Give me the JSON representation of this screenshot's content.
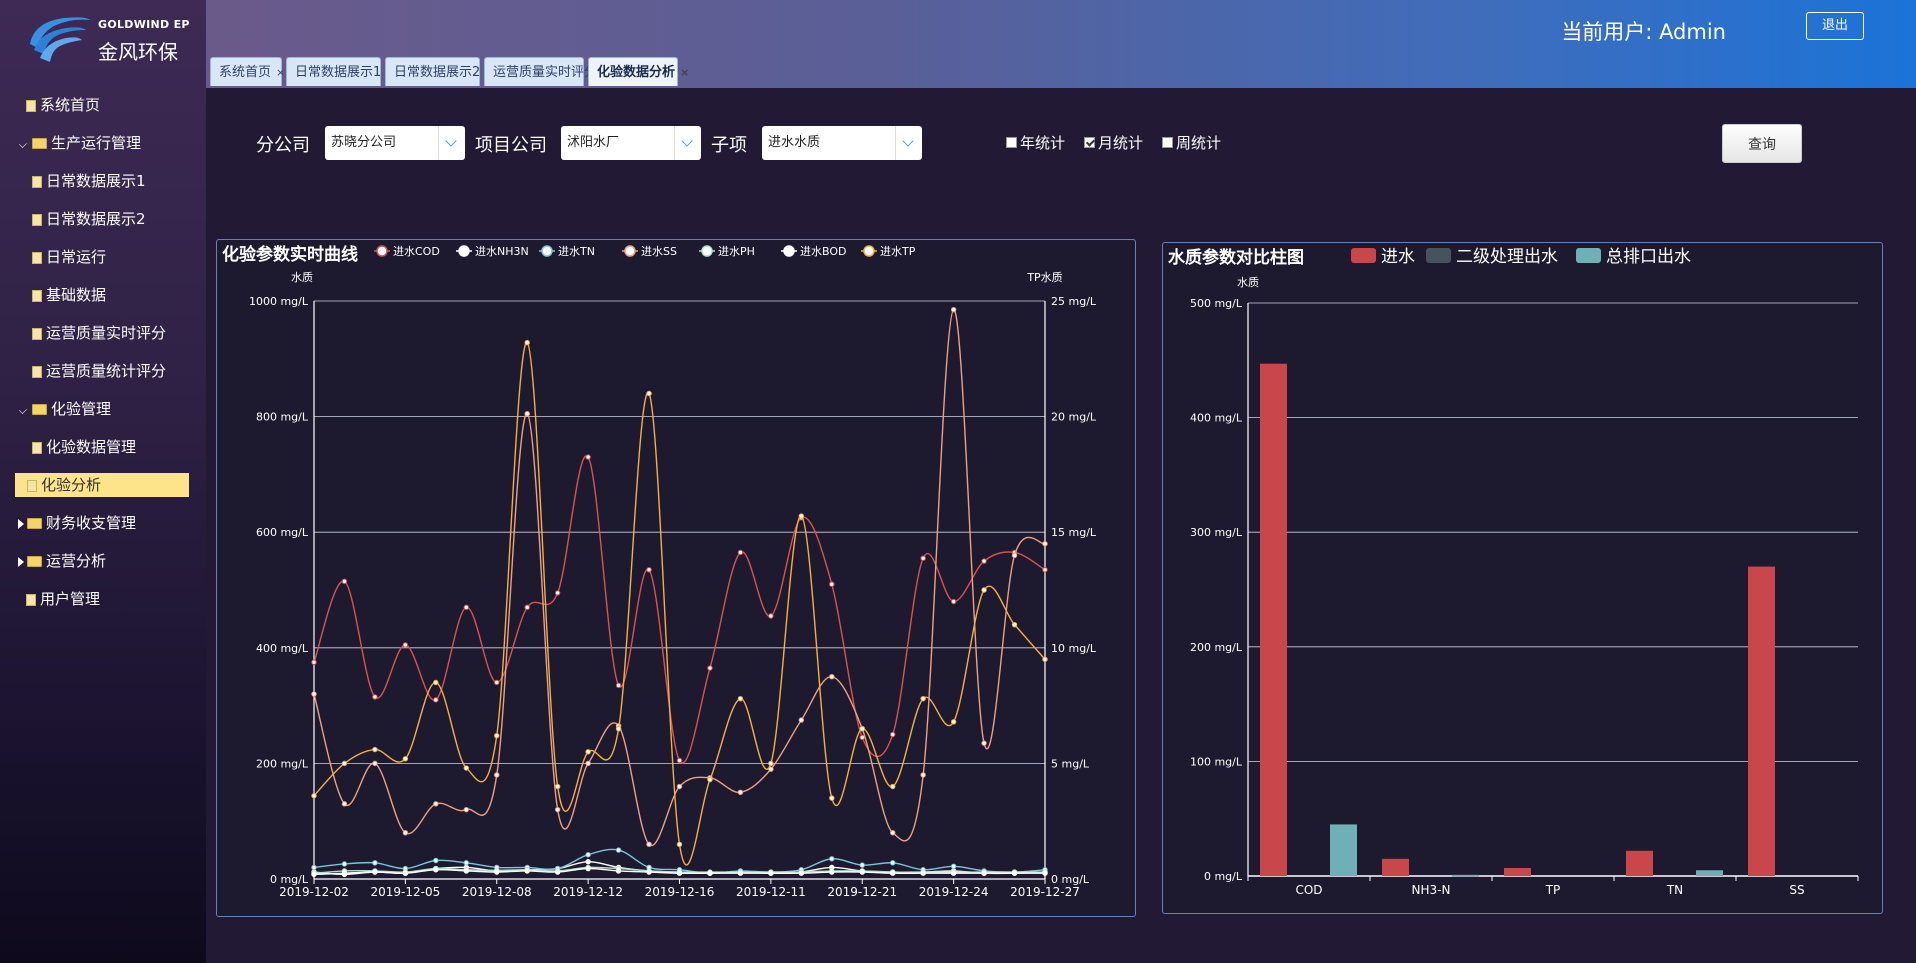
{
  "brand": {
    "en": "GOLDWIND EP",
    "cn": "金风环保"
  },
  "header": {
    "user_label": "当前用户: Admin",
    "logout": "退出"
  },
  "tabs": [
    "系统首页",
    "日常数据展示1",
    "日常数据展示2",
    "运营质量实时评分",
    "化验数据分析"
  ],
  "active_tab": 4,
  "menu": [
    {
      "label": "系统首页",
      "type": "doc",
      "level": 0
    },
    {
      "label": "生产运行管理",
      "type": "folder",
      "level": 0,
      "expanded": true
    },
    {
      "label": "日常数据展示1",
      "type": "doc",
      "level": 1
    },
    {
      "label": "日常数据展示2",
      "type": "doc",
      "level": 1
    },
    {
      "label": "日常运行",
      "type": "doc",
      "level": 1
    },
    {
      "label": "基础数据",
      "type": "doc",
      "level": 1
    },
    {
      "label": "运营质量实时评分",
      "type": "doc",
      "level": 1
    },
    {
      "label": "运营质量统计评分",
      "type": "doc",
      "level": 1
    },
    {
      "label": "化验管理",
      "type": "folder",
      "level": 0,
      "expanded": true
    },
    {
      "label": "化验数据管理",
      "type": "doc",
      "level": 1
    },
    {
      "label": "化验分析",
      "type": "doc",
      "level": 1,
      "active": true
    },
    {
      "label": "财务收支管理",
      "type": "folder",
      "level": 0,
      "expanded": false
    },
    {
      "label": "运营分析",
      "type": "folder",
      "level": 0,
      "expanded": false
    },
    {
      "label": "用户管理",
      "type": "doc",
      "level": 0
    }
  ],
  "filters": {
    "branch_label": "分公司",
    "branch_value": "苏晓分公司",
    "project_label": "项目公司",
    "project_value": "沭阳水厂",
    "item_label": "子项",
    "item_value": "进水水质",
    "year_label": "年统计",
    "year_checked": false,
    "month_label": "月统计",
    "month_checked": true,
    "week_label": "周统计",
    "week_checked": false,
    "query": "查询"
  },
  "line_chart": {
    "title": "化验参数实时曲线",
    "left_axis_name": "水质",
    "right_axis_name": "TP水质",
    "left_ticks": [
      "0 mg/L",
      "200 mg/L",
      "400 mg/L",
      "600 mg/L",
      "800 mg/L",
      "1000 mg/L"
    ],
    "right_ticks": [
      "0 mg/L",
      "5 mg/L",
      "10 mg/L",
      "15 mg/L",
      "20 mg/L",
      "25 mg/L"
    ],
    "x_labels": [
      "2019-12-02",
      "2019-12-05",
      "2019-12-08",
      "2019-12-12",
      "2019-12-16",
      "2019-12-11",
      "2019-12-21",
      "2019-12-24",
      "2019-12-27"
    ]
  },
  "bar_chart": {
    "title": "水质参数对比柱图",
    "axis_name": "水质",
    "ticks": [
      "0 mg/L",
      "100 mg/L",
      "200 mg/L",
      "300 mg/L",
      "400 mg/L",
      "500 mg/L"
    ]
  },
  "chart_data": [
    {
      "type": "line",
      "title": "化验参数实时曲线",
      "ylabel": "水质",
      "y2label": "TP水质",
      "ylim": [
        0,
        1000
      ],
      "y2lim": [
        0,
        25
      ],
      "x_points": 25,
      "series": [
        {
          "name": "进水COD",
          "color": "#d9534f",
          "axis": "left",
          "values": [
            375,
            515,
            315,
            405,
            310,
            470,
            340,
            470,
            495,
            730,
            335,
            535,
            205,
            365,
            565,
            455,
            625,
            510,
            245,
            250,
            555,
            480,
            550,
            565,
            535
          ]
        },
        {
          "name": "进水NH3N",
          "color": "#ffffff",
          "axis": "left",
          "values": [
            12,
            8,
            12,
            10,
            18,
            20,
            14,
            16,
            18,
            30,
            20,
            14,
            12,
            10,
            12,
            10,
            12,
            20,
            14,
            12,
            12,
            14,
            10,
            10,
            12
          ]
        },
        {
          "name": "进水TN",
          "color": "#7ec4d8",
          "axis": "left",
          "values": [
            20,
            26,
            28,
            18,
            32,
            28,
            20,
            20,
            18,
            42,
            50,
            20,
            16,
            10,
            14,
            12,
            16,
            35,
            24,
            28,
            16,
            22,
            14,
            12,
            16
          ]
        },
        {
          "name": "进水SS",
          "color": "#f0a080",
          "axis": "left",
          "values": [
            320,
            130,
            200,
            80,
            130,
            120,
            180,
            805,
            120,
            200,
            265,
            60,
            160,
            175,
            150,
            190,
            275,
            350,
            260,
            80,
            180,
            985,
            235,
            560,
            580
          ]
        },
        {
          "name": "进水PH",
          "color": "#b0e0d0",
          "axis": "left",
          "values": [
            10,
            14,
            14,
            12,
            18,
            16,
            15,
            16,
            14,
            20,
            18,
            14,
            12,
            12,
            12,
            12,
            12,
            14,
            14,
            12,
            12,
            12,
            12,
            12,
            12
          ]
        },
        {
          "name": "进水BOD",
          "color": "#ffffff",
          "axis": "left",
          "values": [
            8,
            10,
            12,
            10,
            16,
            14,
            12,
            14,
            12,
            18,
            14,
            12,
            10,
            10,
            10,
            10,
            10,
            12,
            12,
            10,
            10,
            10,
            10,
            10,
            10
          ]
        },
        {
          "name": "进水TP",
          "color": "#f5b041",
          "axis": "right",
          "values": [
            3.6,
            5.0,
            5.6,
            5.2,
            8.5,
            4.8,
            6.2,
            23.2,
            4.0,
            5.5,
            6.5,
            21.0,
            1.5,
            4.3,
            7.8,
            5.0,
            15.7,
            3.5,
            6.5,
            4.0,
            7.8,
            6.8,
            12.5,
            11.0,
            9.5
          ]
        }
      ]
    },
    {
      "type": "bar",
      "title": "水质参数对比柱图",
      "ylabel": "水质",
      "ylim": [
        0,
        500
      ],
      "categories": [
        "COD",
        "NH3-N",
        "TP",
        "TN",
        "SS"
      ],
      "series": [
        {
          "name": "进水",
          "color": "#c9474a",
          "values": [
            447,
            15,
            7,
            22,
            270
          ]
        },
        {
          "name": "二级处理出水",
          "color": "#44535e",
          "values": [
            0,
            0,
            0,
            0,
            0
          ]
        },
        {
          "name": "总排口出水",
          "color": "#6fb0b6",
          "values": [
            45,
            1,
            0,
            5,
            0
          ]
        }
      ]
    }
  ]
}
